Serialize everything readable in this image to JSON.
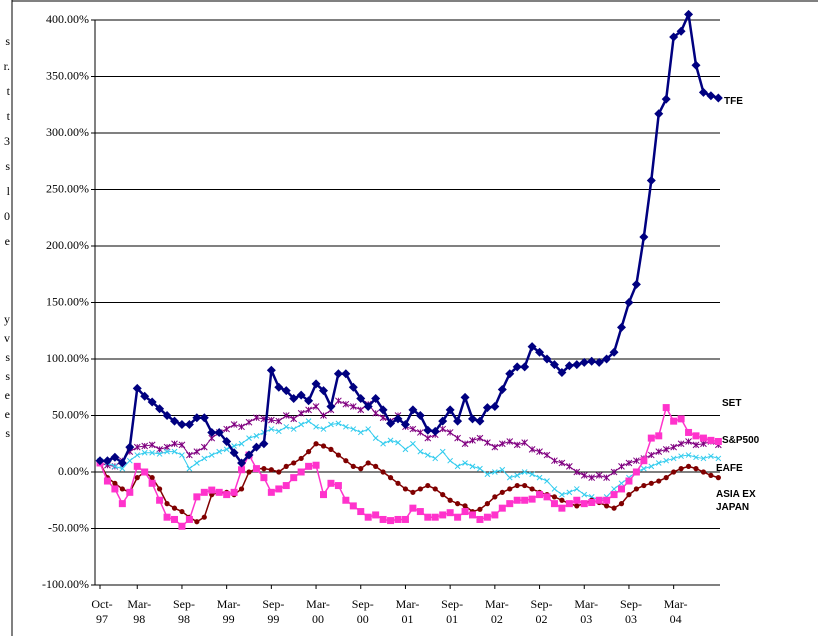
{
  "side_text": [
    [
      "s",
      "r.",
      "t",
      "t",
      "3",
      "s",
      "l",
      "0",
      "e"
    ],
    [
      "y",
      "v",
      "s",
      "s",
      "e",
      "e",
      "s"
    ]
  ],
  "chart_data": {
    "type": "line",
    "categories": [
      "Oct-\n97",
      null,
      null,
      null,
      null,
      "Mar-\n98",
      null,
      null,
      null,
      null,
      null,
      "Sep-\n98",
      null,
      null,
      null,
      null,
      null,
      "Mar-\n99",
      null,
      null,
      null,
      null,
      null,
      "Sep-\n99",
      null,
      null,
      null,
      null,
      null,
      "Mar-\n00",
      null,
      null,
      null,
      null,
      null,
      "Sep-\n00",
      null,
      null,
      null,
      null,
      null,
      "Mar-\n01",
      null,
      null,
      null,
      null,
      null,
      "Sep-\n01",
      null,
      null,
      null,
      null,
      null,
      "Mar-\n02",
      null,
      null,
      null,
      null,
      null,
      "Sep-\n02",
      null,
      null,
      null,
      null,
      null,
      "Mar-\n03",
      null,
      null,
      null,
      null,
      null,
      "Sep-\n03",
      null,
      null,
      null,
      null,
      null,
      "Mar-\n04",
      null,
      null,
      null,
      null,
      null,
      null
    ],
    "ylim": [
      -100,
      400
    ],
    "yticks": [
      {
        "value": -100,
        "label": "-100.00%"
      },
      {
        "value": -50,
        "label": "-50.00%"
      },
      {
        "value": 0,
        "label": "0.00%"
      },
      {
        "value": 50,
        "label": "50.00%"
      },
      {
        "value": 100,
        "label": "100.00%"
      },
      {
        "value": 150,
        "label": "150.00%"
      },
      {
        "value": 200,
        "label": "200.00%"
      },
      {
        "value": 250,
        "label": "250.00%"
      },
      {
        "value": 300,
        "label": "300.00%"
      },
      {
        "value": 350,
        "label": "350.00%"
      },
      {
        "value": 400,
        "label": "400.00%"
      }
    ],
    "grid": true,
    "series": [
      {
        "name": "TFE",
        "color": "#000080",
        "values": [
          10,
          10,
          13,
          8,
          22,
          74,
          67,
          62,
          56,
          50,
          45,
          42,
          42,
          48,
          48,
          35,
          35,
          27,
          17,
          8,
          15,
          22,
          25,
          90,
          75,
          72,
          65,
          68,
          63,
          78,
          72,
          58,
          87,
          87,
          75,
          65,
          58,
          65,
          55,
          43,
          47,
          42,
          55,
          50,
          37,
          36,
          45,
          55,
          45,
          66,
          47,
          45,
          57,
          58,
          73,
          87,
          93,
          93,
          111,
          106,
          100,
          95,
          88,
          94,
          95,
          97,
          98,
          97,
          100,
          106,
          128,
          150,
          166,
          208,
          258,
          317,
          330,
          385,
          390,
          405,
          360,
          336,
          333,
          331
        ]
      },
      {
        "name": "SET",
        "color": "#ff33cc",
        "values": [
          8,
          -8,
          -15,
          -28,
          -18,
          5,
          0,
          -10,
          -25,
          -40,
          -42,
          -48,
          -42,
          -22,
          -18,
          -16,
          -18,
          -20,
          -18,
          2,
          15,
          3,
          -5,
          -18,
          -15,
          -12,
          -5,
          0,
          5,
          6,
          -20,
          -10,
          -12,
          -25,
          -30,
          -35,
          -40,
          -38,
          -42,
          -43,
          -42,
          -42,
          -32,
          -35,
          -40,
          -40,
          -38,
          -36,
          -40,
          -35,
          -38,
          -42,
          -40,
          -38,
          -32,
          -28,
          -25,
          -25,
          -24,
          -20,
          -22,
          -28,
          -32,
          -28,
          -25,
          -28,
          -27,
          -25,
          -25,
          -20,
          -15,
          -8,
          0,
          10,
          30,
          32,
          57,
          45,
          47,
          35,
          32,
          30,
          28,
          27
        ]
      },
      {
        "name": "S&P500",
        "color": "#800080",
        "values": [
          8,
          6,
          5,
          10,
          18,
          22,
          23,
          24,
          20,
          22,
          25,
          24,
          15,
          18,
          22,
          30,
          35,
          38,
          42,
          40,
          44,
          48,
          47,
          46,
          45,
          50,
          47,
          52,
          55,
          58,
          50,
          55,
          63,
          60,
          58,
          55,
          60,
          52,
          48,
          45,
          50,
          40,
          38,
          35,
          30,
          33,
          38,
          35,
          30,
          25,
          28,
          30,
          26,
          22,
          25,
          27,
          24,
          26,
          20,
          18,
          15,
          10,
          8,
          5,
          0,
          -3,
          -5,
          -3,
          -5,
          0,
          5,
          8,
          10,
          12,
          15,
          18,
          20,
          22,
          25,
          27,
          24,
          25,
          27,
          24
        ]
      },
      {
        "name": "EAFE",
        "color": "#33ccee",
        "values": [
          10,
          8,
          5,
          3,
          10,
          15,
          17,
          17,
          16,
          18,
          18,
          15,
          3,
          8,
          12,
          15,
          18,
          20,
          23,
          25,
          30,
          32,
          35,
          38,
          36,
          40,
          38,
          42,
          45,
          40,
          38,
          42,
          43,
          40,
          38,
          35,
          38,
          30,
          25,
          28,
          26,
          20,
          25,
          18,
          15,
          12,
          18,
          10,
          5,
          8,
          5,
          3,
          -2,
          0,
          2,
          -5,
          -3,
          0,
          -2,
          -5,
          -8,
          -15,
          -20,
          -18,
          -15,
          -20,
          -22,
          -25,
          -22,
          -15,
          -10,
          -5,
          0,
          3,
          5,
          8,
          10,
          12,
          14,
          15,
          13,
          12,
          14,
          12
        ]
      },
      {
        "name": "ASIA EX JAPAN",
        "color": "#800000",
        "values": [
          8,
          -5,
          -10,
          -15,
          -18,
          -5,
          0,
          -5,
          -15,
          -28,
          -32,
          -35,
          -40,
          -44,
          -40,
          -20,
          -18,
          -18,
          -20,
          -15,
          0,
          3,
          3,
          2,
          0,
          5,
          8,
          12,
          18,
          25,
          23,
          20,
          15,
          10,
          5,
          3,
          8,
          5,
          0,
          -5,
          -10,
          -15,
          -18,
          -15,
          -12,
          -15,
          -20,
          -25,
          -28,
          -30,
          -35,
          -33,
          -28,
          -22,
          -18,
          -15,
          -12,
          -12,
          -15,
          -18,
          -20,
          -22,
          -25,
          -28,
          -30,
          -28,
          -25,
          -27,
          -30,
          -32,
          -28,
          -20,
          -15,
          -12,
          -10,
          -8,
          -5,
          0,
          3,
          5,
          3,
          0,
          -3,
          -5
        ]
      }
    ]
  }
}
